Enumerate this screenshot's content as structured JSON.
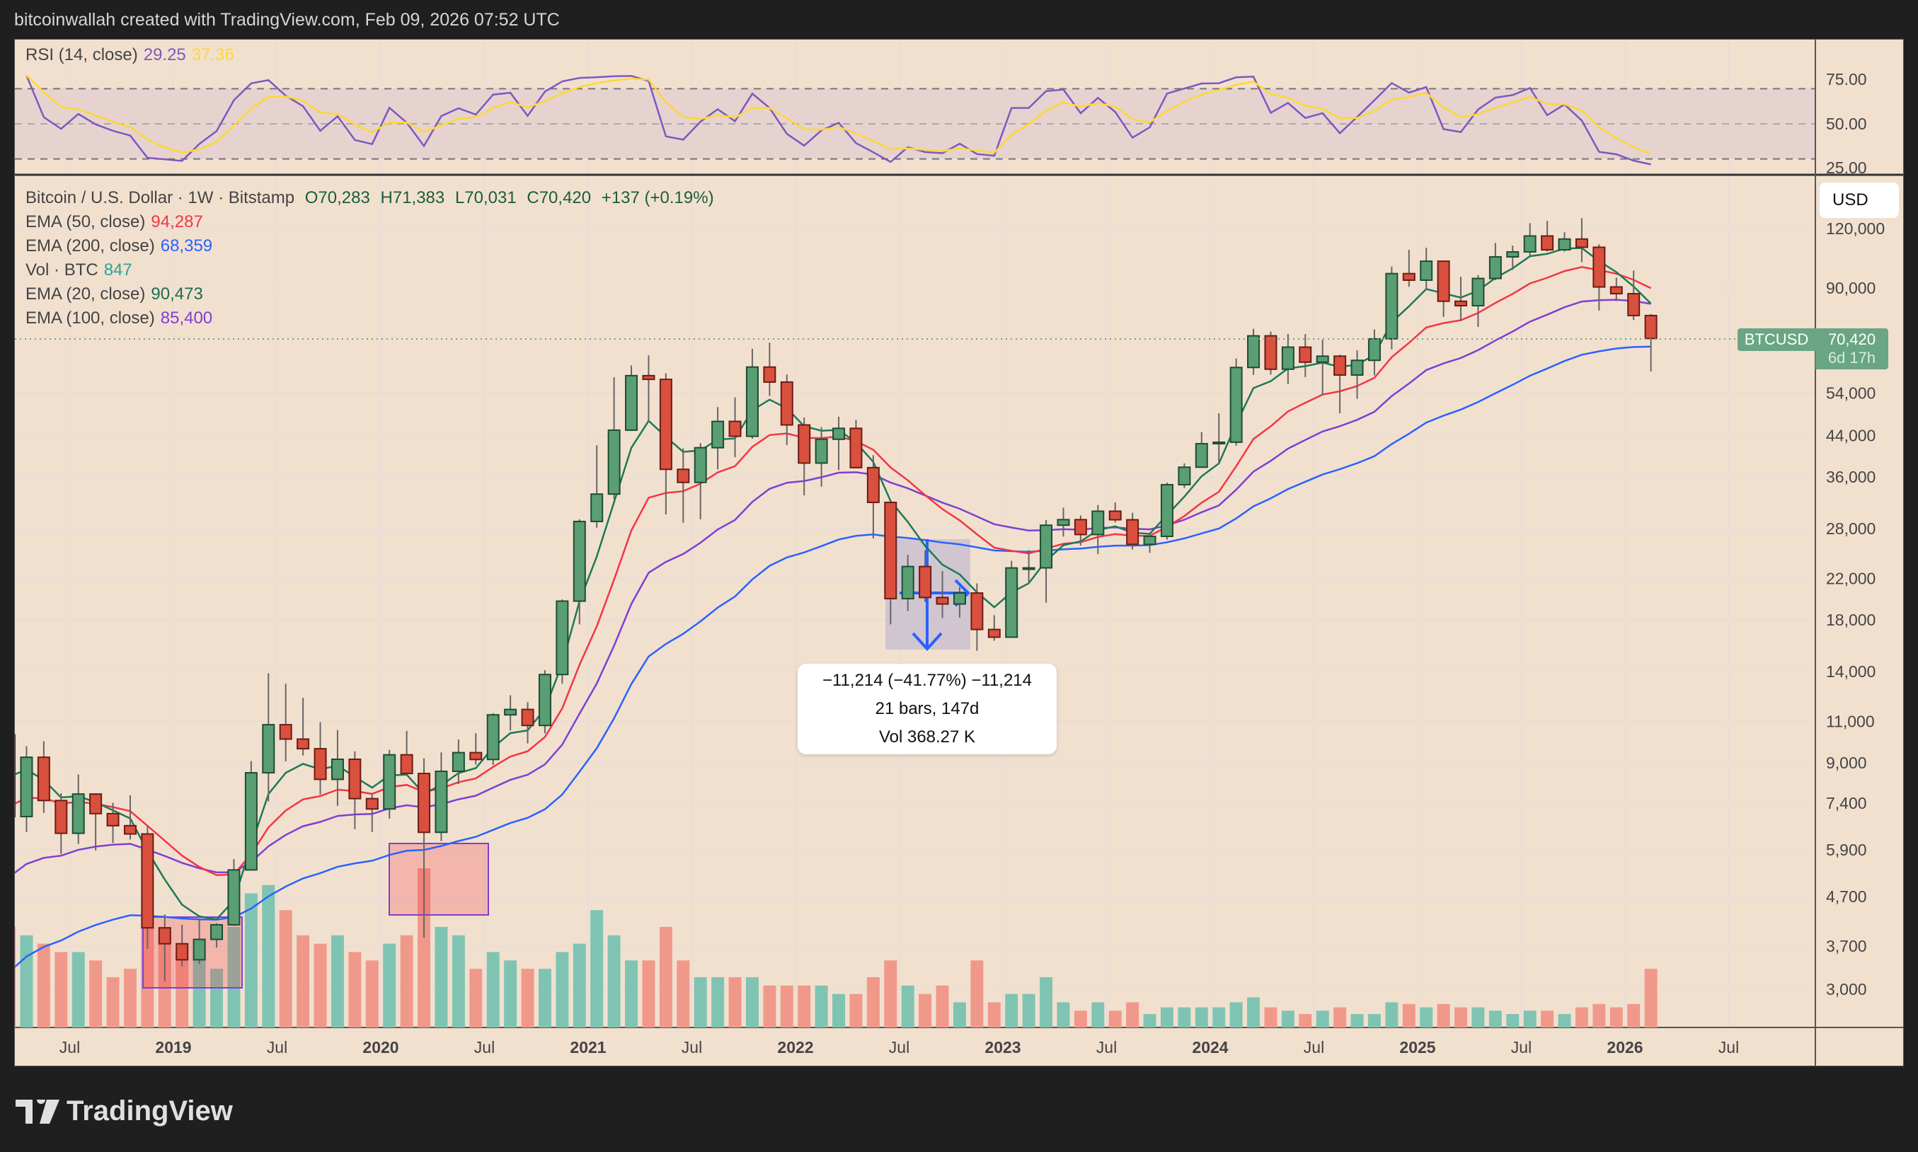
{
  "header": {
    "credit": "bitcoinwallah created with TradingView.com, Feb 09, 2026 07:52 UTC"
  },
  "rsi_legend": {
    "label": "RSI (14, close)",
    "value": "29.25",
    "ma_value": "37.36"
  },
  "legend": {
    "symbol": "Bitcoin / U.S. Dollar · 1W · Bitstamp",
    "open": "O70,283",
    "high": "H71,383",
    "low": "L70,031",
    "close": "C70,420",
    "change": "+137 (+0.19%)",
    "ema50": {
      "label": "EMA (50, close)",
      "value": "94,287"
    },
    "ema200": {
      "label": "EMA (200, close)",
      "value": "68,359"
    },
    "vol": {
      "label": "Vol · BTC",
      "value": "847"
    },
    "ema20": {
      "label": "EMA (20, close)",
      "value": "90,473"
    },
    "ema100": {
      "label": "EMA (100, close)",
      "value": "85,400"
    }
  },
  "currency_button": "USD",
  "price_tag": {
    "symbol": "BTCUSD",
    "price": "70,420",
    "countdown": "6d 17h"
  },
  "measure_tooltip": {
    "line1": "−11,214 (−41.77%) −11,214",
    "line2": "21 bars, 147d",
    "line3": "Vol 368.27 K"
  },
  "logo": "TradingView",
  "colors": {
    "background": "#f2e0cf",
    "up": "#5a9e74",
    "down": "#d9503e",
    "ema20": "#1b7a54",
    "ema50": "#f23645",
    "ema100": "#7e3fd3",
    "ema200": "#2962ff",
    "rsi": "#7e57c2",
    "rsi_ma": "#fdd835",
    "vol_up": "#7fc4b3",
    "vol_down": "#f0998a"
  },
  "chart_data": {
    "type": "candlestick",
    "scale": "log",
    "grid": true,
    "start_month": "2018-03",
    "x_ticks": [
      "Jul",
      "2019",
      "Jul",
      "2020",
      "Jul",
      "2021",
      "Jul",
      "2022",
      "Jul",
      "2023",
      "Jul",
      "2024",
      "Jul",
      "2025",
      "Jul",
      "2026",
      "Jul"
    ],
    "y_ticks": [
      "120,000",
      "90,000",
      "54,000",
      "44,000",
      "36,000",
      "28,000",
      "22,000",
      "18,000",
      "14,000",
      "11,000",
      "9,000",
      "7,400",
      "5,900",
      "4,700",
      "3,700",
      "3,000"
    ],
    "rsi_ticks": [
      "75.00",
      "50.00",
      "25.00"
    ],
    "rsi_bands": [
      30,
      50,
      70
    ],
    "ohlc": [
      [
        10300,
        11700,
        6600,
        6930
      ],
      [
        6930,
        9750,
        6430,
        9240
      ],
      [
        9240,
        9990,
        7050,
        7490
      ],
      [
        7490,
        7760,
        5780,
        6390
      ],
      [
        6390,
        8500,
        6070,
        7730
      ],
      [
        7730,
        7750,
        5880,
        7030
      ],
      [
        7030,
        7410,
        6100,
        6630
      ],
      [
        6630,
        7680,
        6200,
        6370
      ],
      [
        6370,
        6600,
        3650,
        4040
      ],
      [
        4040,
        4310,
        3120,
        3740
      ],
      [
        3740,
        4100,
        3350,
        3460
      ],
      [
        3460,
        4200,
        3390,
        3820
      ],
      [
        3820,
        4130,
        3670,
        4100
      ],
      [
        4100,
        5640,
        4080,
        5350
      ],
      [
        5350,
        9070,
        5330,
        8570
      ],
      [
        8570,
        13880,
        7460,
        10820
      ],
      [
        10820,
        13200,
        9060,
        10090
      ],
      [
        10090,
        12330,
        9320,
        9630
      ],
      [
        9630,
        10950,
        7710,
        8300
      ],
      [
        8300,
        10540,
        7300,
        9150
      ],
      [
        9150,
        9510,
        6520,
        7560
      ],
      [
        7560,
        7750,
        6430,
        7190
      ],
      [
        7190,
        9580,
        6860,
        9350
      ],
      [
        9350,
        10500,
        8450,
        8540
      ],
      [
        8540,
        9190,
        3850,
        6420
      ],
      [
        6420,
        9460,
        6150,
        8630
      ],
      [
        8630,
        10070,
        8110,
        9450
      ],
      [
        9450,
        10380,
        8920,
        9140
      ],
      [
        9140,
        11440,
        8900,
        11350
      ],
      [
        11350,
        12480,
        10520,
        11650
      ],
      [
        11650,
        12070,
        9880,
        10780
      ],
      [
        10780,
        14100,
        10380,
        13800
      ],
      [
        13800,
        19860,
        13200,
        19700
      ],
      [
        19700,
        29300,
        17600,
        28990
      ],
      [
        28990,
        41950,
        28130,
        33110
      ],
      [
        33110,
        58350,
        32300,
        45140
      ],
      [
        45140,
        61790,
        45000,
        58800
      ],
      [
        58800,
        64900,
        47000,
        57750
      ],
      [
        57750,
        59500,
        30000,
        37330
      ],
      [
        37330,
        41330,
        28800,
        35040
      ],
      [
        35040,
        42400,
        29300,
        41460
      ],
      [
        41460,
        50500,
        37300,
        47100
      ],
      [
        47100,
        52900,
        39600,
        43820
      ],
      [
        43820,
        67000,
        43300,
        61300
      ],
      [
        61300,
        69000,
        53300,
        57000
      ],
      [
        57000,
        59100,
        42000,
        46300
      ],
      [
        46300,
        47990,
        32900,
        38480
      ],
      [
        38480,
        45800,
        34300,
        43190
      ],
      [
        43190,
        48190,
        37200,
        45540
      ],
      [
        45540,
        47440,
        37700,
        37640
      ],
      [
        37640,
        39980,
        26700,
        31800
      ],
      [
        31800,
        31990,
        17600,
        19940
      ],
      [
        19940,
        24670,
        18780,
        23300
      ],
      [
        23300,
        25200,
        19600,
        20050
      ],
      [
        20050,
        22800,
        18150,
        19430
      ],
      [
        19430,
        21100,
        18190,
        20490
      ],
      [
        20490,
        21480,
        15480,
        17170
      ],
      [
        17170,
        18400,
        16260,
        16540
      ],
      [
        16540,
        23950,
        16500,
        23140
      ],
      [
        23140,
        25250,
        21400,
        23150
      ],
      [
        23150,
        29190,
        19550,
        28470
      ],
      [
        28470,
        31000,
        26940,
        29250
      ],
      [
        29250,
        29840,
        25810,
        27210
      ],
      [
        27210,
        31400,
        24750,
        30470
      ],
      [
        30470,
        31800,
        28860,
        29230
      ],
      [
        29230,
        30240,
        25300,
        25940
      ],
      [
        25940,
        27490,
        24900,
        26970
      ],
      [
        26970,
        35000,
        26540,
        34650
      ],
      [
        34650,
        38430,
        34100,
        37720
      ],
      [
        37720,
        44730,
        37600,
        42270
      ],
      [
        42270,
        48970,
        38500,
        42580
      ],
      [
        42580,
        63900,
        41880,
        61180
      ],
      [
        61180,
        73800,
        59000,
        71330
      ],
      [
        71330,
        72800,
        59100,
        60670
      ],
      [
        60670,
        71980,
        56500,
        67520
      ],
      [
        67520,
        71950,
        58400,
        62770
      ],
      [
        62770,
        70000,
        53500,
        64630
      ],
      [
        64630,
        65100,
        49000,
        58980
      ],
      [
        58980,
        66500,
        52550,
        63330
      ],
      [
        63330,
        73600,
        58900,
        70290
      ],
      [
        70290,
        99800,
        66800,
        96450
      ],
      [
        96450,
        108300,
        90500,
        93430
      ],
      [
        93430,
        109350,
        89260,
        102430
      ],
      [
        102430,
        102500,
        78200,
        84350
      ],
      [
        84350,
        95000,
        76600,
        82550
      ],
      [
        82550,
        95750,
        74500,
        94200
      ],
      [
        94200,
        111900,
        93400,
        104600
      ],
      [
        104600,
        110500,
        98200,
        107170
      ],
      [
        107170,
        123200,
        105300,
        115770
      ],
      [
        115770,
        124500,
        107300,
        108250
      ],
      [
        108250,
        117900,
        107300,
        114050
      ],
      [
        114050,
        126200,
        102000,
        109600
      ],
      [
        109600,
        111200,
        80600,
        90400
      ],
      [
        90400,
        94600,
        84400,
        87500
      ],
      [
        87500,
        97900,
        77000,
        78700
      ],
      [
        78700,
        79300,
        60000,
        70420
      ]
    ],
    "volume": [
      60,
      55,
      50,
      45,
      45,
      40,
      30,
      35,
      70,
      60,
      45,
      40,
      35,
      60,
      80,
      85,
      70,
      55,
      50,
      55,
      45,
      40,
      50,
      55,
      95,
      60,
      55,
      35,
      45,
      40,
      35,
      35,
      45,
      50,
      70,
      55,
      40,
      40,
      60,
      40,
      30,
      30,
      30,
      30,
      25,
      25,
      25,
      25,
      20,
      20,
      30,
      40,
      25,
      20,
      25,
      15,
      40,
      15,
      20,
      20,
      30,
      15,
      10,
      15,
      10,
      15,
      8,
      12,
      12,
      12,
      12,
      15,
      18,
      12,
      10,
      8,
      10,
      12,
      8,
      8,
      15,
      14,
      12,
      14,
      12,
      12,
      10,
      8,
      10,
      10,
      8,
      12,
      14,
      12,
      14,
      35
    ],
    "current_price": 70420
  }
}
